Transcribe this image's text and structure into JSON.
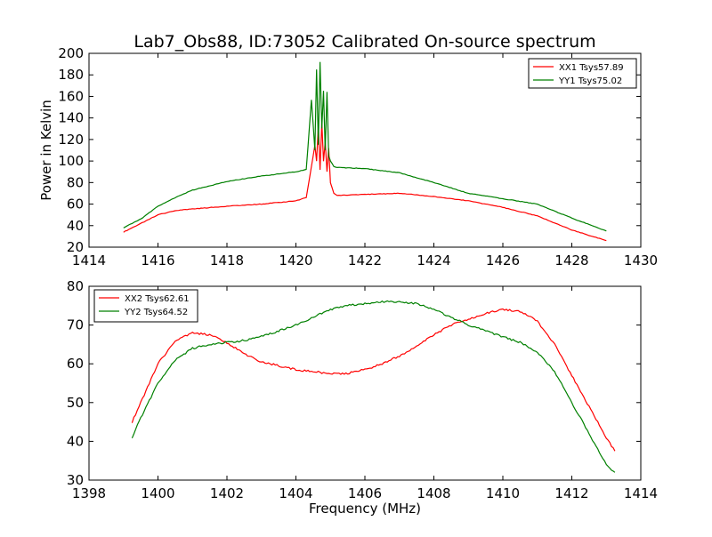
{
  "chart_data": [
    {
      "type": "line",
      "title": "Lab7_Obs88, ID:73052 Calibrated On-source spectrum",
      "xlabel": "",
      "ylabel": "Power in Kelvin",
      "xlim": [
        1414,
        1430
      ],
      "ylim": [
        20,
        200
      ],
      "xticks": [
        1414,
        1416,
        1418,
        1420,
        1422,
        1424,
        1426,
        1428,
        1430
      ],
      "yticks": [
        20,
        40,
        60,
        80,
        100,
        120,
        140,
        160,
        180,
        200
      ],
      "grid": false,
      "legend_position": "top-right",
      "series": [
        {
          "name": "XX1 Tsys57.89",
          "color": "#ff0000",
          "x": [
            1415,
            1415.5,
            1416,
            1416.5,
            1417,
            1418,
            1419,
            1420,
            1420.3,
            1420.45,
            1420.55,
            1420.6,
            1420.65,
            1420.7,
            1420.75,
            1420.8,
            1420.85,
            1420.9,
            1420.95,
            1421.0,
            1421.1,
            1421.2,
            1422,
            1423,
            1424,
            1425,
            1426,
            1427,
            1428,
            1429
          ],
          "y": [
            34,
            42,
            50,
            54,
            55.5,
            58,
            60,
            63,
            66,
            95,
            115,
            100,
            133,
            92,
            136,
            100,
            118,
            90,
            112,
            80,
            70,
            68,
            69,
            70,
            67,
            63,
            57,
            49,
            36,
            26
          ]
        },
        {
          "name": "YY1 Tsys75.02",
          "color": "#008000",
          "x": [
            1415,
            1415.5,
            1416,
            1416.5,
            1417,
            1418,
            1419,
            1420,
            1420.3,
            1420.45,
            1420.55,
            1420.6,
            1420.65,
            1420.7,
            1420.75,
            1420.8,
            1420.85,
            1420.9,
            1420.95,
            1421.0,
            1421.1,
            1421.2,
            1422,
            1423,
            1424,
            1425,
            1426,
            1427,
            1428,
            1429
          ],
          "y": [
            38,
            46,
            58,
            66,
            73,
            81,
            86,
            90,
            92,
            157,
            110,
            185,
            115,
            192,
            130,
            165,
            110,
            164,
            105,
            100,
            95,
            94,
            93,
            89,
            80,
            70,
            65,
            60,
            47,
            35
          ]
        }
      ]
    },
    {
      "type": "line",
      "title": "",
      "xlabel": "Frequency (MHz)",
      "ylabel": "",
      "xlim": [
        1398,
        1414
      ],
      "ylim": [
        30,
        80
      ],
      "xticks": [
        1398,
        1400,
        1402,
        1404,
        1406,
        1408,
        1410,
        1412,
        1414
      ],
      "yticks": [
        30,
        40,
        50,
        60,
        70,
        80
      ],
      "grid": false,
      "legend_position": "top-left",
      "series": [
        {
          "name": "XX2 Tsys62.61",
          "color": "#ff0000",
          "x": [
            1399.25,
            1399.5,
            1400,
            1400.5,
            1401,
            1401.5,
            1402,
            1402.5,
            1403,
            1403.5,
            1404,
            1404.5,
            1405,
            1405.5,
            1406,
            1406.5,
            1407,
            1407.5,
            1408,
            1408.5,
            1409,
            1409.5,
            1410,
            1410.5,
            1411,
            1411.5,
            1412,
            1412.5,
            1413,
            1413.25
          ],
          "y": [
            45,
            50,
            60,
            66,
            68,
            67.5,
            65.5,
            62.5,
            60.5,
            59.5,
            58.5,
            58,
            57.5,
            57.5,
            58.5,
            60,
            62,
            64.5,
            67.5,
            70,
            71.5,
            73,
            74,
            73.5,
            71,
            65,
            57,
            49,
            41,
            37.5
          ]
        },
        {
          "name": "YY2 Tsys64.52",
          "color": "#008000",
          "x": [
            1399.25,
            1399.5,
            1400,
            1400.5,
            1401,
            1401.5,
            1402,
            1402.5,
            1403,
            1403.5,
            1404,
            1404.5,
            1405,
            1405.5,
            1406,
            1406.5,
            1407,
            1407.5,
            1408,
            1408.5,
            1409,
            1409.5,
            1410,
            1410.5,
            1411,
            1411.5,
            1412,
            1412.5,
            1413,
            1413.25
          ],
          "y": [
            41,
            46,
            55,
            61,
            64,
            65,
            65.5,
            66,
            67,
            68.5,
            70,
            72,
            74,
            75,
            75.5,
            76,
            76,
            75.5,
            74,
            72,
            70,
            68.5,
            67,
            65.5,
            63,
            58,
            50,
            42,
            34,
            32
          ]
        }
      ]
    }
  ]
}
